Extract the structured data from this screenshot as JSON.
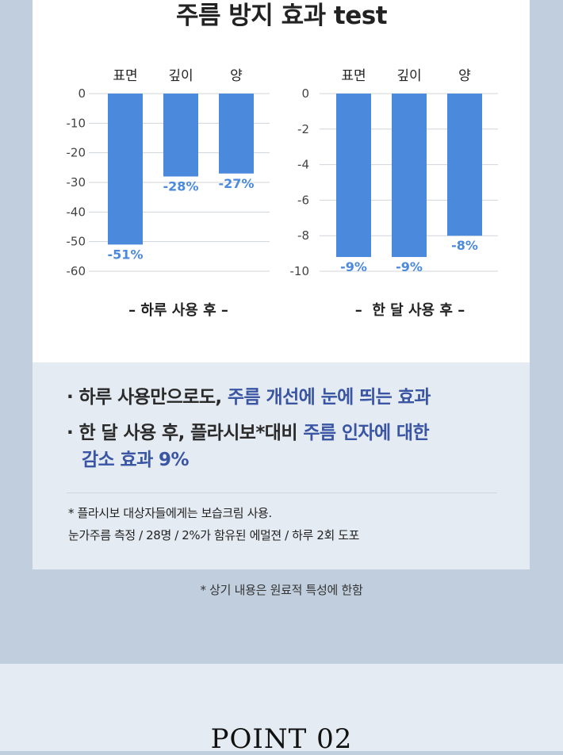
{
  "title": "주름 방지 효과 test",
  "chart_data": [
    {
      "type": "bar",
      "categories": [
        "표면",
        "깊이",
        "양"
      ],
      "values": [
        -51,
        -28,
        -27
      ],
      "data_labels": [
        "-51%",
        "-28%",
        "-27%"
      ],
      "y_ticks": [
        "0",
        "-10",
        "-20",
        "-30",
        "-40",
        "-50",
        "-60"
      ],
      "ylim": [
        -60,
        0
      ],
      "grid": true,
      "caption": "– 하루 사용 후 –",
      "bar_color": "#4a89dc",
      "label_color": "#4a89dc"
    },
    {
      "type": "bar",
      "categories": [
        "표면",
        "깊이",
        "양"
      ],
      "values": [
        -9,
        -9,
        -8
      ],
      "bar_values_drawn": [
        -9.2,
        -9.2,
        -8.0
      ],
      "data_labels": [
        "-9%",
        "-9%",
        "-8%"
      ],
      "y_ticks": [
        "0",
        "-2",
        "-4",
        "-6",
        "-8",
        "-10"
      ],
      "ylim": [
        -10,
        0
      ],
      "grid": true,
      "caption": "–  한 달 사용 후 –",
      "bar_color": "#4a89dc",
      "label_color": "#4a89dc"
    }
  ],
  "summary": {
    "line1_plain": "· 하루 사용만으로도, ",
    "line1_highlight": "주름 개선에 눈에 띄는 효과",
    "line2_plain": "· 한 달 사용 후, 플라시보*대비 ",
    "line2_highlight": "주름 인자에 대한",
    "line3_highlight": "감소 효과 9%"
  },
  "notes": {
    "line1": "* 플라시보 대상자들에게는 보습크림 사용.",
    "line2": "눈가주름 측정 / 28명 / 2%가 함유된 에멀젼 / 하루 2회 도포"
  },
  "footnote": "* 상기 내용은 원료적 특성에 한함",
  "point_label": "POINT 02",
  "colors": {
    "background": "#c1cedd",
    "panel": "#ffffff",
    "panel_light": "#e5ebf2",
    "highlight_text": "#3a55a4",
    "bar": "#4a89dc"
  }
}
